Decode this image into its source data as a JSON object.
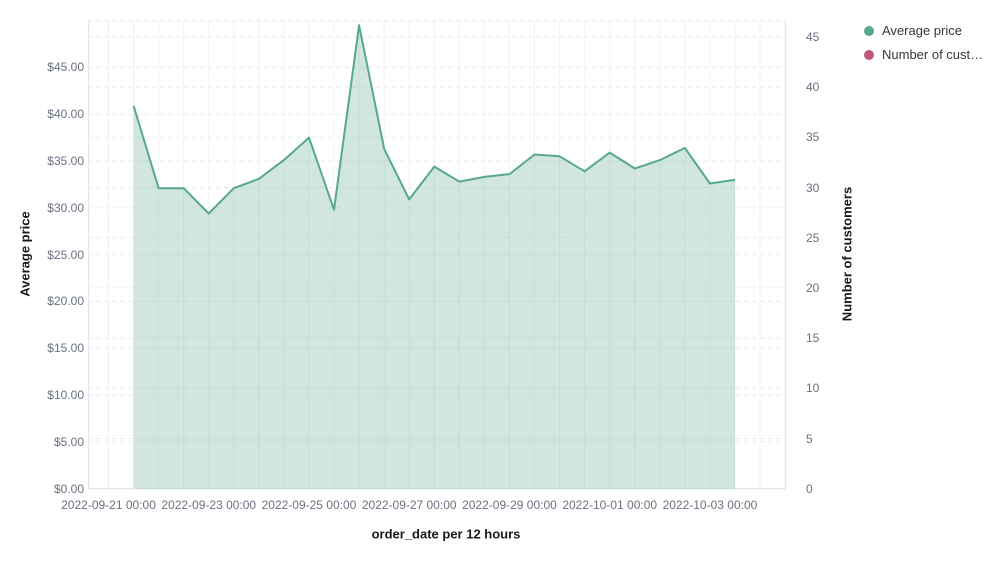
{
  "colors": {
    "series_green": "#58a88a",
    "series_green_fill_opacity": 0.28,
    "series_pink": "#c4587b",
    "h_gridline": "#e5e9ef",
    "v_gridline": "#eef1f4",
    "plot_border": "#dfe5eb",
    "tick_text": "#6a7180",
    "title_text": "#17191e",
    "legend_text": "#343741"
  },
  "legend": {
    "items": [
      {
        "label": "Average price",
        "color_key": "series_green"
      },
      {
        "label": "Number of cust…",
        "color_key": "series_pink"
      }
    ]
  },
  "chart_data": {
    "type": "area",
    "title": "",
    "x_axis": {
      "title": "order_date per 12 hours",
      "tick_labels": [
        "2022-09-21 00:00",
        "2022-09-23 00:00",
        "2022-09-25 00:00",
        "2022-09-27 00:00",
        "2022-09-29 00:00",
        "2022-10-01 00:00",
        "2022-10-03 00:00"
      ],
      "interval": "12 hours"
    },
    "left_axis": {
      "title": "Average price",
      "tick_labels": [
        "$0.00",
        "$5.00",
        "$10.00",
        "$15.00",
        "$20.00",
        "$25.00",
        "$30.00",
        "$35.00",
        "$40.00",
        "$45.00"
      ],
      "tick_values": [
        0,
        5,
        10,
        15,
        20,
        25,
        30,
        35,
        40,
        45
      ],
      "min": 0,
      "max": 50,
      "grid": "dashed"
    },
    "right_axis": {
      "title": "Number of customers",
      "tick_labels": [
        "0",
        "5",
        "10",
        "15",
        "20",
        "25",
        "30",
        "35",
        "40",
        "45"
      ],
      "tick_values": [
        0,
        5,
        10,
        15,
        20,
        25,
        30,
        35,
        40,
        45
      ],
      "min": 0,
      "max": 45,
      "grid": "dashed"
    },
    "series": [
      {
        "name": "Average price",
        "axis": "left",
        "type": "area",
        "color_key": "series_green",
        "x": [
          "2022-09-21 12:00",
          "2022-09-22 00:00",
          "2022-09-22 12:00",
          "2022-09-23 00:00",
          "2022-09-23 12:00",
          "2022-09-24 00:00",
          "2022-09-24 12:00",
          "2022-09-25 00:00",
          "2022-09-25 12:00",
          "2022-09-26 00:00",
          "2022-09-26 12:00",
          "2022-09-27 00:00",
          "2022-09-27 12:00",
          "2022-09-28 00:00",
          "2022-09-28 12:00",
          "2022-09-29 00:00",
          "2022-09-29 12:00",
          "2022-09-30 00:00",
          "2022-09-30 12:00",
          "2022-10-01 00:00",
          "2022-10-01 12:00",
          "2022-10-02 00:00",
          "2022-10-02 12:00",
          "2022-10-03 00:00",
          "2022-10-03 12:00"
        ],
        "values": [
          40.9,
          32.1,
          32.1,
          29.4,
          32.1,
          33.1,
          35.1,
          37.5,
          29.8,
          49.5,
          36.3,
          30.9,
          34.4,
          32.8,
          33.3,
          33.6,
          35.7,
          35.5,
          33.9,
          35.9,
          34.2,
          35.1,
          36.4,
          32.6,
          33.0
        ]
      },
      {
        "name": "Number of customers",
        "axis": "right",
        "type": "line",
        "color_key": "series_pink",
        "x": [],
        "values": []
      }
    ]
  }
}
